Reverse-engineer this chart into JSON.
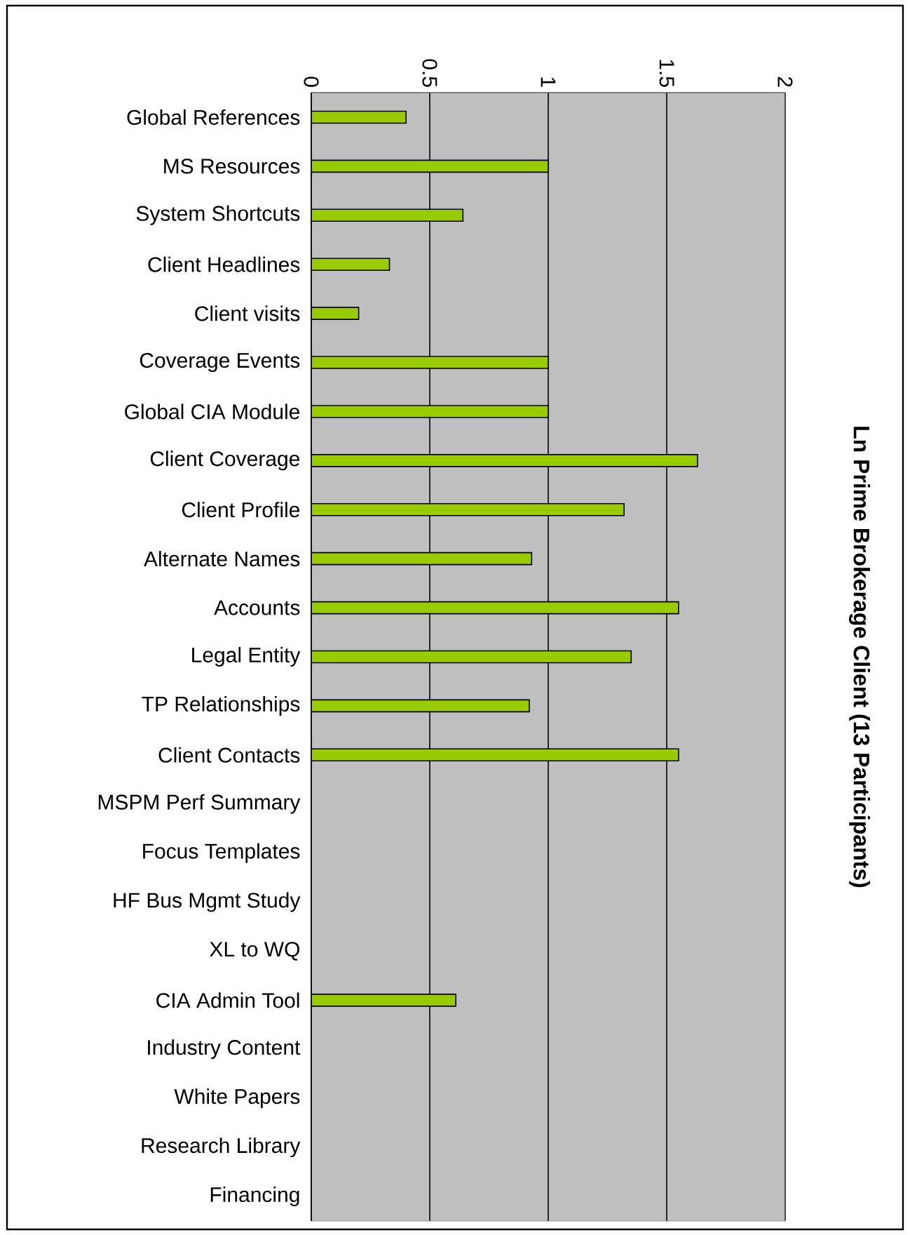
{
  "chart_data": {
    "type": "bar",
    "orientation": "horizontal",
    "title": "Ln Prime Brokerage Client (13 Participants)",
    "categories": [
      "Global References",
      "MS Resources",
      "System Shortcuts",
      "Client Headlines",
      "Client visits",
      "Coverage Events",
      "Global CIA Module",
      "Client Coverage",
      "Client Profile",
      "Alternate Names",
      "Accounts",
      "Legal Entity",
      "TP Relationships",
      "Client Contacts",
      "MSPM Perf Summary",
      "Focus Templates",
      "HF Bus Mgmt Study",
      "XL to WQ",
      "CIA Admin Tool",
      "Industry Content",
      "White Papers",
      "Research Library",
      "Financing"
    ],
    "values": [
      0.4,
      1.0,
      0.64,
      0.33,
      0.2,
      1.0,
      1.0,
      1.63,
      1.32,
      0.93,
      1.55,
      1.35,
      0.92,
      1.55,
      null,
      null,
      null,
      null,
      0.61,
      null,
      null,
      null,
      null
    ],
    "color": "#99cc00",
    "xlim": [
      0,
      2
    ],
    "xticks": [
      0,
      0.5,
      1,
      1.5,
      2
    ],
    "grid": "x"
  }
}
